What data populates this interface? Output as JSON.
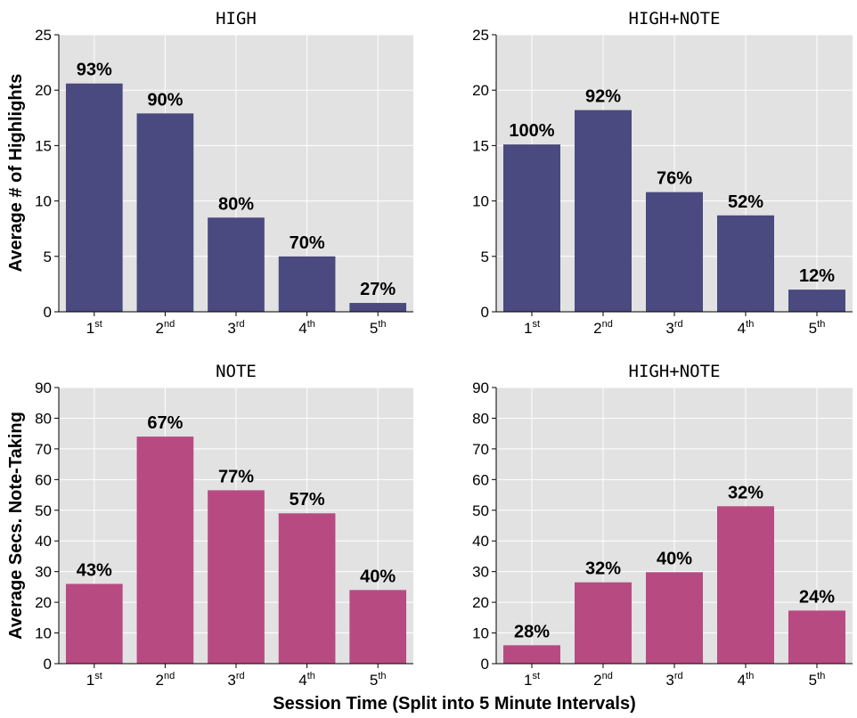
{
  "colors": {
    "blue_bar": "#4a4a80",
    "pink_bar": "#b84a82",
    "plot_bg": "#e2e2e2",
    "grid": "#ffffff"
  },
  "ylabels": {
    "top": "Average # of Highlights",
    "bottom": "Average Secs. Note-Taking"
  },
  "xlabel": "Session Time (Split into 5 Minute Intervals)",
  "categories": [
    {
      "num": "1",
      "sup": "st"
    },
    {
      "num": "2",
      "sup": "nd"
    },
    {
      "num": "3",
      "sup": "rd"
    },
    {
      "num": "4",
      "sup": "th"
    },
    {
      "num": "5",
      "sup": "th"
    }
  ],
  "chart_data": [
    {
      "type": "bar",
      "title": "HIGH",
      "ylim": [
        0,
        25
      ],
      "yticks": [
        0,
        5,
        10,
        15,
        20,
        25
      ],
      "color": "#4a4a80",
      "values": [
        20.6,
        17.9,
        8.5,
        5.0,
        0.8
      ],
      "labels": [
        "93%",
        "90%",
        "80%",
        "70%",
        "27%"
      ]
    },
    {
      "type": "bar",
      "title": "HIGH+NOTE",
      "ylim": [
        0,
        25
      ],
      "yticks": [
        0,
        5,
        10,
        15,
        20,
        25
      ],
      "color": "#4a4a80",
      "values": [
        15.1,
        18.2,
        10.8,
        8.7,
        2.0
      ],
      "labels": [
        "100%",
        "92%",
        "76%",
        "52%",
        "12%"
      ]
    },
    {
      "type": "bar",
      "title": "NOTE",
      "ylim": [
        0,
        90
      ],
      "yticks": [
        0,
        10,
        20,
        30,
        40,
        50,
        60,
        70,
        80,
        90
      ],
      "color": "#b84a82",
      "values": [
        26,
        74,
        56.5,
        49,
        24
      ],
      "labels": [
        "43%",
        "67%",
        "77%",
        "57%",
        "40%"
      ]
    },
    {
      "type": "bar",
      "title": "HIGH+NOTE",
      "ylim": [
        0,
        90
      ],
      "yticks": [
        0,
        10,
        20,
        30,
        40,
        50,
        60,
        70,
        80,
        90
      ],
      "color": "#b84a82",
      "values": [
        6,
        26.5,
        29.8,
        51.3,
        17.3
      ],
      "labels": [
        "28%",
        "32%",
        "40%",
        "32%",
        "24%"
      ]
    }
  ]
}
